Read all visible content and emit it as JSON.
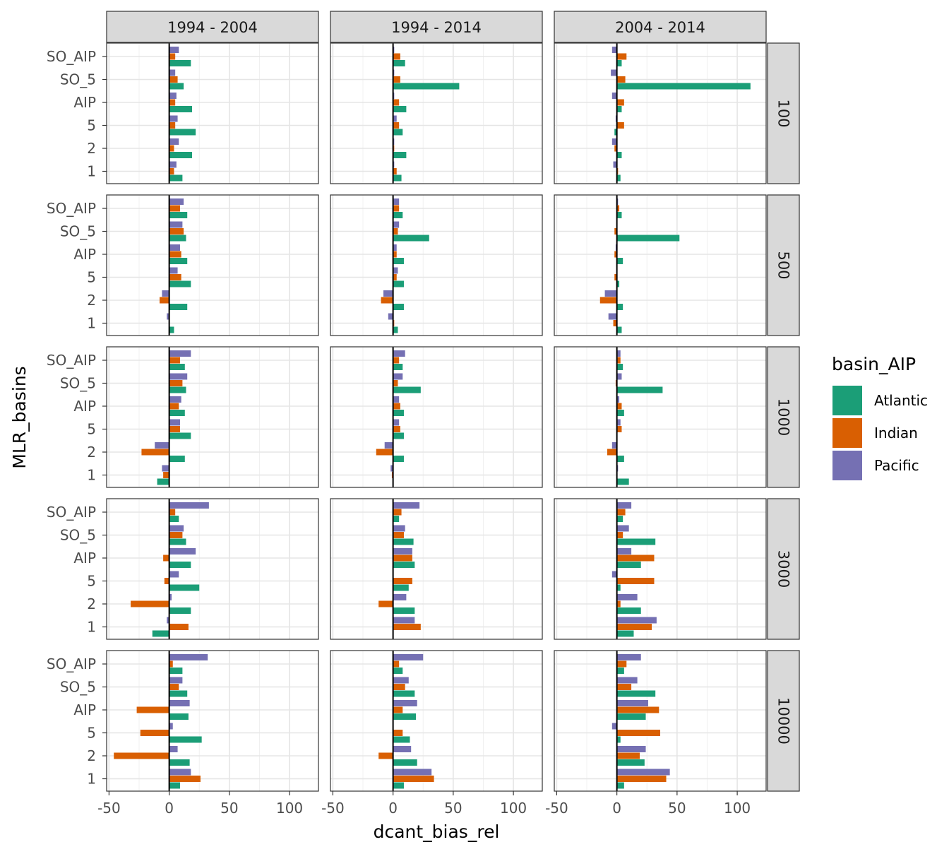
{
  "chart_data": {
    "type": "bar",
    "orientation": "horizontal",
    "xlabel": "dcant_bias_rel",
    "ylabel": "MLR_basins",
    "xlim": [
      -52,
      124
    ],
    "x_ticks": [
      -50,
      0,
      50,
      100
    ],
    "categories": [
      "1",
      "2",
      "5",
      "AIP",
      "SO_5",
      "SO_AIP"
    ],
    "facet_cols": [
      "1994 - 2004",
      "1994 - 2014",
      "2004 - 2014"
    ],
    "facet_rows": [
      "100",
      "500",
      "1000",
      "3000",
      "10000"
    ],
    "legend": {
      "title": "basin_AIP",
      "position": "right",
      "entries": [
        {
          "name": "Atlantic",
          "color": "#1B9E77"
        },
        {
          "name": "Indian",
          "color": "#D95F02"
        },
        {
          "name": "Pacific",
          "color": "#7570B3"
        }
      ]
    },
    "grid": true,
    "panels": [
      {
        "row": "100",
        "col": "1994 - 2004",
        "Atlantic": [
          11,
          19,
          22,
          19,
          12,
          18
        ],
        "Indian": [
          4,
          4,
          5,
          5,
          7,
          5
        ],
        "Pacific": [
          6,
          8,
          7,
          6,
          5,
          8
        ]
      },
      {
        "row": "100",
        "col": "1994 - 2014",
        "Atlantic": [
          7,
          11,
          8,
          11,
          55,
          10
        ],
        "Indian": [
          3,
          1,
          5,
          5,
          6,
          6
        ],
        "Pacific": [
          1,
          1,
          3,
          1,
          1,
          1
        ]
      },
      {
        "row": "100",
        "col": "2004 - 2014",
        "Atlantic": [
          3,
          4,
          -2,
          4,
          111,
          4
        ],
        "Indian": [
          1,
          -2,
          6,
          6,
          7,
          8
        ],
        "Pacific": [
          -3,
          -4,
          -1,
          -4,
          -5,
          -4
        ]
      },
      {
        "row": "500",
        "col": "1994 - 2004",
        "Atlantic": [
          4,
          15,
          18,
          15,
          14,
          15
        ],
        "Indian": [
          0,
          -8,
          10,
          10,
          12,
          9
        ],
        "Pacific": [
          -2,
          -6,
          7,
          9,
          11,
          12
        ]
      },
      {
        "row": "500",
        "col": "1994 - 2014",
        "Atlantic": [
          4,
          9,
          9,
          9,
          30,
          8
        ],
        "Indian": [
          1,
          -10,
          3,
          3,
          4,
          5
        ],
        "Pacific": [
          -4,
          -8,
          4,
          3,
          5,
          5
        ]
      },
      {
        "row": "500",
        "col": "2004 - 2014",
        "Atlantic": [
          4,
          5,
          2,
          5,
          52,
          4
        ],
        "Indian": [
          -3,
          -14,
          -2,
          -2,
          -2,
          2
        ],
        "Pacific": [
          -7,
          -10,
          0,
          -1,
          0,
          1
        ]
      },
      {
        "row": "1000",
        "col": "1994 - 2004",
        "Atlantic": [
          -10,
          13,
          18,
          13,
          14,
          13
        ],
        "Indian": [
          -5,
          -23,
          9,
          8,
          11,
          9
        ],
        "Pacific": [
          -6,
          -12,
          9,
          10,
          15,
          18
        ]
      },
      {
        "row": "1000",
        "col": "1994 - 2014",
        "Atlantic": [
          0,
          9,
          9,
          9,
          23,
          8
        ],
        "Indian": [
          -1,
          -14,
          6,
          6,
          4,
          5
        ],
        "Pacific": [
          -2,
          -7,
          5,
          5,
          8,
          10
        ]
      },
      {
        "row": "1000",
        "col": "2004 - 2014",
        "Atlantic": [
          10,
          6,
          0,
          6,
          38,
          5
        ],
        "Indian": [
          0,
          -8,
          4,
          4,
          -1,
          3
        ],
        "Pacific": [
          1,
          -4,
          3,
          2,
          4,
          3
        ]
      },
      {
        "row": "3000",
        "col": "1994 - 2004",
        "Atlantic": [
          -14,
          18,
          25,
          18,
          14,
          8
        ],
        "Indian": [
          16,
          -32,
          -4,
          -5,
          11,
          5
        ],
        "Pacific": [
          -2,
          2,
          8,
          22,
          12,
          33
        ]
      },
      {
        "row": "3000",
        "col": "1994 - 2014",
        "Atlantic": [
          0,
          18,
          13,
          18,
          17,
          5
        ],
        "Indian": [
          23,
          -12,
          16,
          16,
          9,
          7
        ],
        "Pacific": [
          18,
          11,
          0,
          16,
          10,
          22
        ]
      },
      {
        "row": "3000",
        "col": "2004 - 2014",
        "Atlantic": [
          14,
          20,
          3,
          20,
          32,
          5
        ],
        "Indian": [
          29,
          3,
          31,
          31,
          5,
          7
        ],
        "Pacific": [
          33,
          17,
          -4,
          12,
          10,
          12
        ]
      },
      {
        "row": "10000",
        "col": "1994 - 2004",
        "Atlantic": [
          9,
          17,
          27,
          16,
          15,
          11
        ],
        "Indian": [
          26,
          -46,
          -24,
          -27,
          8,
          3
        ],
        "Pacific": [
          18,
          7,
          3,
          17,
          11,
          32
        ]
      },
      {
        "row": "10000",
        "col": "1994 - 2014",
        "Atlantic": [
          9,
          20,
          14,
          19,
          18,
          8
        ],
        "Indian": [
          34,
          -12,
          8,
          8,
          10,
          5
        ],
        "Pacific": [
          32,
          15,
          0,
          20,
          13,
          25
        ]
      },
      {
        "row": "10000",
        "col": "2004 - 2014",
        "Atlantic": [
          6,
          23,
          3,
          24,
          32,
          6
        ],
        "Indian": [
          41,
          19,
          36,
          35,
          12,
          8
        ],
        "Pacific": [
          44,
          24,
          -4,
          26,
          17,
          20
        ]
      }
    ]
  }
}
